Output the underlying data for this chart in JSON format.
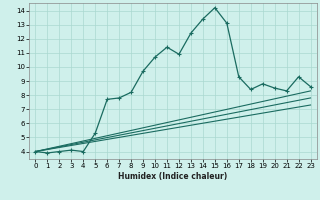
{
  "title": "",
  "xlabel": "Humidex (Indice chaleur)",
  "bg_color": "#cff0eb",
  "line_color": "#1a6b60",
  "grid_color": "#aad8d0",
  "xlim": [
    -0.5,
    23.5
  ],
  "ylim": [
    3.5,
    14.5
  ],
  "xticks": [
    0,
    1,
    2,
    3,
    4,
    5,
    6,
    7,
    8,
    9,
    10,
    11,
    12,
    13,
    14,
    15,
    16,
    17,
    18,
    19,
    20,
    21,
    22,
    23
  ],
  "yticks": [
    4,
    5,
    6,
    7,
    8,
    9,
    10,
    11,
    12,
    13,
    14
  ],
  "main_x": [
    0,
    1,
    2,
    3,
    4,
    5,
    6,
    7,
    8,
    9,
    10,
    11,
    12,
    13,
    14,
    15,
    16,
    17,
    18,
    19,
    20,
    21,
    22,
    23
  ],
  "main_y": [
    4.0,
    3.9,
    4.0,
    4.1,
    4.0,
    5.3,
    7.7,
    7.8,
    8.2,
    9.7,
    10.7,
    11.4,
    10.9,
    12.4,
    13.4,
    14.2,
    13.1,
    9.3,
    8.4,
    8.8,
    8.5,
    8.3,
    9.3,
    8.6
  ],
  "line1_x": [
    0,
    23
  ],
  "line1_y": [
    4.0,
    8.3
  ],
  "line2_x": [
    0,
    23
  ],
  "line2_y": [
    4.0,
    7.8
  ],
  "line3_x": [
    0,
    23
  ],
  "line3_y": [
    4.0,
    7.3
  ],
  "marker_x": [
    0,
    1,
    2,
    3,
    4,
    5,
    6,
    7,
    8,
    9,
    10,
    11,
    12,
    13,
    14,
    15,
    16,
    17,
    18,
    19,
    20,
    21,
    22,
    23
  ],
  "marker_y": [
    4.0,
    3.9,
    4.0,
    4.1,
    4.0,
    5.3,
    7.7,
    7.8,
    8.2,
    9.7,
    10.7,
    11.4,
    10.9,
    12.4,
    13.4,
    14.2,
    13.1,
    9.3,
    8.4,
    8.8,
    8.5,
    8.3,
    9.3,
    8.6
  ]
}
